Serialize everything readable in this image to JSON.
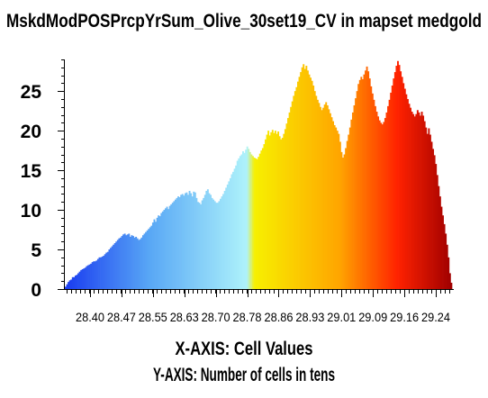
{
  "chart_data": {
    "type": "bar",
    "title": "MskdModPOSPrcpYrSum_Olive_30set19_CV in mapset medgold",
    "xlabel": "X-AXIS: Cell Values",
    "ylabel": "Y-AXIS: Number of cells in tens",
    "x_tick_labels": [
      "28.40",
      "28.47",
      "28.55",
      "28.63",
      "28.70",
      "28.78",
      "28.86",
      "28.93",
      "29.01",
      "29.09",
      "29.16",
      "29.24"
    ],
    "y_tick_labels": [
      "0",
      "5",
      "10",
      "15",
      "20",
      "25"
    ],
    "ylim": [
      0,
      29
    ],
    "grid": false,
    "color_ramp": [
      "#1a3cf0",
      "#59a8f5",
      "#aef2fb",
      "#f7f000",
      "#ffa500",
      "#ff2200",
      "#a00000"
    ],
    "values": [
      0.3,
      0.6,
      0.9,
      1.1,
      1.2,
      1.5,
      1.5,
      1.7,
      1.8,
      2.0,
      2.2,
      2.4,
      2.5,
      2.6,
      2.7,
      2.9,
      3.0,
      3.1,
      3.2,
      3.4,
      3.5,
      3.5,
      3.6,
      3.8,
      4.0,
      4.0,
      4.1,
      4.2,
      4.4,
      4.6,
      4.7,
      5.0,
      5.2,
      5.4,
      5.6,
      5.8,
      6.0,
      6.2,
      6.4,
      6.5,
      6.7,
      6.9,
      7.0,
      6.8,
      6.9,
      7.0,
      6.6,
      6.8,
      6.7,
      6.5,
      6.6,
      6.4,
      6.2,
      6.3,
      6.5,
      6.8,
      7.0,
      7.2,
      7.4,
      7.6,
      7.8,
      8.0,
      8.4,
      8.8,
      8.5,
      9.0,
      9.3,
      9.2,
      9.6,
      9.8,
      10.0,
      10.2,
      10.4,
      10.1,
      10.5,
      10.7,
      10.9,
      11.1,
      11.3,
      11.5,
      11.7,
      11.6,
      11.9,
      12.0,
      11.8,
      12.1,
      12.2,
      11.9,
      12.4,
      12.1,
      11.7,
      12.3,
      12.2,
      11.5,
      11.0,
      10.9,
      10.7,
      11.2,
      11.5,
      11.9,
      12.4,
      12.6,
      12.1,
      11.9,
      11.5,
      11.3,
      11.1,
      10.9,
      10.9,
      11.1,
      11.4,
      11.7,
      12.0,
      12.4,
      12.8,
      13.2,
      13.6,
      14.0,
      14.5,
      14.8,
      15.2,
      15.6,
      16.2,
      16.5,
      16.8,
      17.0,
      17.4,
      17.2,
      17.6,
      18.0,
      17.7,
      17.3,
      17.0,
      16.8,
      16.6,
      16.5,
      16.4,
      16.7,
      17.1,
      17.5,
      17.8,
      18.3,
      18.9,
      19.5,
      20.0,
      19.4,
      19.8,
      20.1,
      19.7,
      20.0,
      19.6,
      19.9,
      19.3,
      18.9,
      19.1,
      19.6,
      20.2,
      20.9,
      21.6,
      22.3,
      23.0,
      23.7,
      24.4,
      25.0,
      25.5,
      26.2,
      26.8,
      27.4,
      28.0,
      28.4,
      27.8,
      28.2,
      27.6,
      27.1,
      26.7,
      26.3,
      25.7,
      25.0,
      24.4,
      23.9,
      23.5,
      23.0,
      22.6,
      22.9,
      23.3,
      23.6,
      23.2,
      22.7,
      22.2,
      21.7,
      21.2,
      20.7,
      20.4,
      20.0,
      19.6,
      18.6,
      17.3,
      16.6,
      17.0,
      17.8,
      18.7,
      19.5,
      20.4,
      21.4,
      22.3,
      23.2,
      24.1,
      25.0,
      25.9,
      26.4,
      26.8,
      26.5,
      27.1,
      27.6,
      28.1,
      27.5,
      26.6,
      25.6,
      24.7,
      23.9,
      23.1,
      22.4,
      21.8,
      21.3,
      21.0,
      20.8,
      21.1,
      21.6,
      22.3,
      23.1,
      23.9,
      24.8,
      25.7,
      26.6,
      27.4,
      28.2,
      28.8,
      28.3,
      27.5,
      26.8,
      26.0,
      25.3,
      24.6,
      24.0,
      23.4,
      22.9,
      22.4,
      22.1,
      21.8,
      22.1,
      22.6,
      22.3,
      21.9,
      22.4,
      21.9,
      21.2,
      20.4,
      19.6,
      20.3,
      19.5,
      18.6,
      17.7,
      16.9,
      15.8,
      14.4,
      13.0,
      11.7,
      10.4,
      9.3,
      8.2,
      7.0,
      5.6,
      4.0,
      2.0,
      0.8
    ]
  }
}
